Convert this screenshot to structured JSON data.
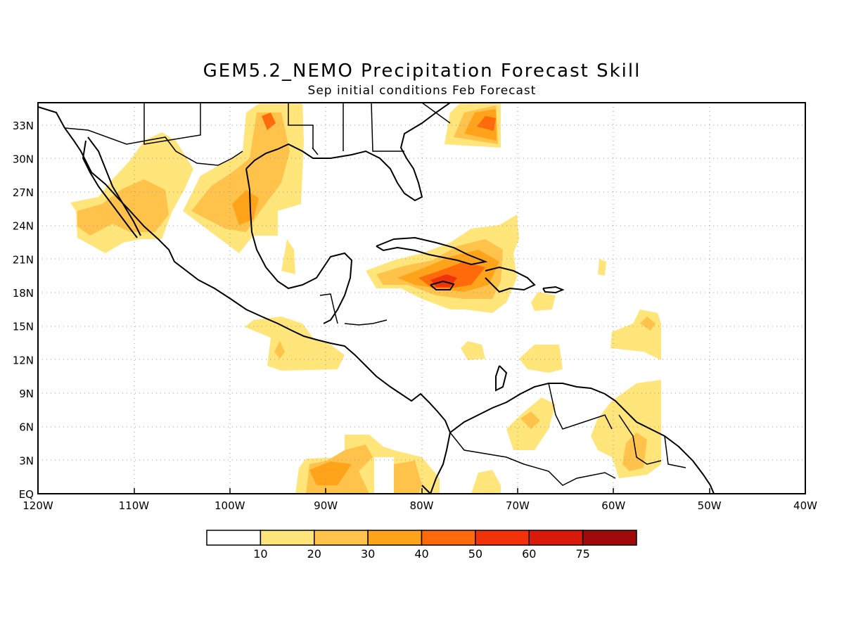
{
  "title": "GEM5.2_NEMO Precipitation Forecast Skill",
  "subtitle": "Sep initial conditions  Feb Forecast",
  "map": {
    "lon_range": [
      -120,
      -40
    ],
    "lat_range": [
      0,
      35
    ],
    "lon_ticks": [
      {
        "value": -120,
        "label": "120W"
      },
      {
        "value": -110,
        "label": "110W"
      },
      {
        "value": -100,
        "label": "100W"
      },
      {
        "value": -90,
        "label": "90W"
      },
      {
        "value": -80,
        "label": "80W"
      },
      {
        "value": -70,
        "label": "70W"
      },
      {
        "value": -60,
        "label": "60W"
      },
      {
        "value": -50,
        "label": "50W"
      },
      {
        "value": -40,
        "label": "40W"
      }
    ],
    "lat_ticks": [
      {
        "value": 0,
        "label": "EQ"
      },
      {
        "value": 3,
        "label": "3N"
      },
      {
        "value": 6,
        "label": "6N"
      },
      {
        "value": 9,
        "label": "9N"
      },
      {
        "value": 12,
        "label": "12N"
      },
      {
        "value": 15,
        "label": "15N"
      },
      {
        "value": 18,
        "label": "18N"
      },
      {
        "value": 21,
        "label": "21N"
      },
      {
        "value": 24,
        "label": "24N"
      },
      {
        "value": 27,
        "label": "27N"
      },
      {
        "value": 30,
        "label": "30N"
      },
      {
        "value": 33,
        "label": "33N"
      }
    ],
    "grid": "dotted"
  },
  "colorbar": {
    "labels": [
      "10",
      "20",
      "30",
      "40",
      "50",
      "60",
      "75"
    ],
    "colors": [
      "#ffffff",
      "#ffe57a",
      "#ffc24a",
      "#ffa41a",
      "#ff6a0a",
      "#f2330a",
      "#d91a0a",
      "#a00a0a"
    ]
  }
}
